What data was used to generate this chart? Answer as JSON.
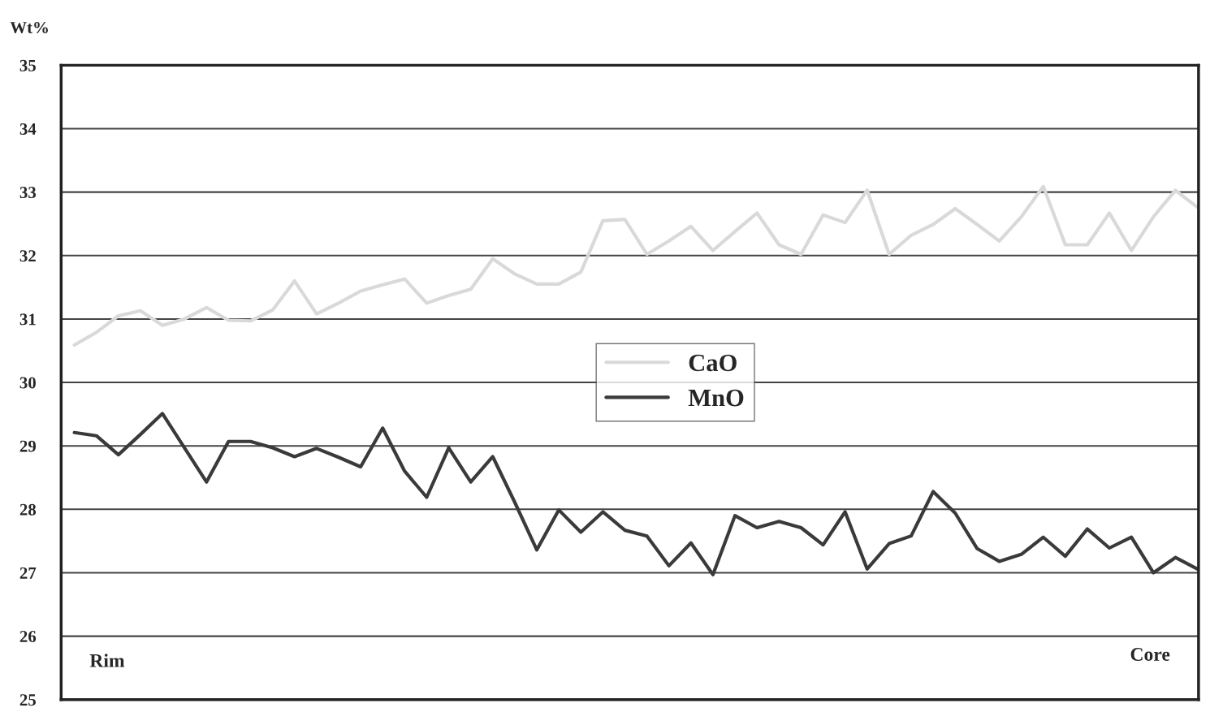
{
  "chart_data": {
    "type": "line",
    "ylabel": "Wt%",
    "categories": [
      null,
      null,
      null,
      null,
      null,
      null,
      null,
      null,
      null,
      null,
      null,
      null,
      null,
      null,
      null,
      null,
      null,
      null,
      null,
      null,
      null,
      null,
      null,
      null,
      null,
      null,
      null,
      null,
      null,
      null,
      null,
      null,
      null,
      null,
      null,
      null,
      null,
      null,
      null,
      null,
      null,
      null,
      null,
      null,
      null,
      null,
      null,
      null,
      null,
      null,
      null,
      null
    ],
    "series": [
      {
        "name": "CaO",
        "color": "#d9d9d9",
        "values": [
          30.59,
          30.79,
          31.05,
          31.13,
          30.9,
          31.0,
          31.18,
          30.98,
          30.97,
          31.14,
          31.6,
          31.08,
          31.25,
          31.44,
          31.54,
          31.63,
          31.25,
          31.37,
          31.47,
          31.95,
          31.71,
          31.55,
          31.55,
          31.74,
          32.55,
          32.57,
          32.02,
          32.23,
          32.46,
          32.08,
          32.38,
          32.67,
          32.17,
          32.02,
          32.64,
          32.52,
          33.03,
          32.02,
          32.32,
          32.49,
          32.74,
          32.49,
          32.23,
          32.61,
          33.09,
          32.17,
          32.17,
          32.67,
          32.08,
          32.61,
          33.03,
          32.76
        ]
      },
      {
        "name": "MnO",
        "color": "#3a3a3a",
        "values": [
          29.21,
          29.16,
          28.86,
          29.18,
          29.51,
          28.97,
          28.43,
          29.07,
          29.07,
          28.97,
          28.83,
          28.96,
          28.82,
          28.67,
          29.28,
          28.6,
          28.19,
          28.97,
          28.43,
          28.83,
          28.11,
          27.36,
          27.99,
          27.64,
          27.96,
          27.67,
          27.58,
          27.11,
          27.47,
          26.97,
          27.9,
          27.71,
          27.81,
          27.71,
          27.44,
          27.96,
          27.06,
          27.46,
          27.58,
          28.28,
          27.94,
          27.38,
          27.18,
          27.29,
          27.56,
          27.26,
          27.69,
          27.39,
          27.56,
          27.0,
          27.24,
          27.06
        ]
      }
    ],
    "ylim": [
      25,
      35
    ],
    "yticks": [
      25,
      26,
      27,
      28,
      29,
      30,
      31,
      32,
      33,
      34,
      35
    ],
    "grid": "y",
    "legend": "center",
    "marker": "none",
    "line_style": "solid",
    "annotations": [
      {
        "text": "Rim"
      },
      {
        "text": "Core"
      }
    ]
  }
}
